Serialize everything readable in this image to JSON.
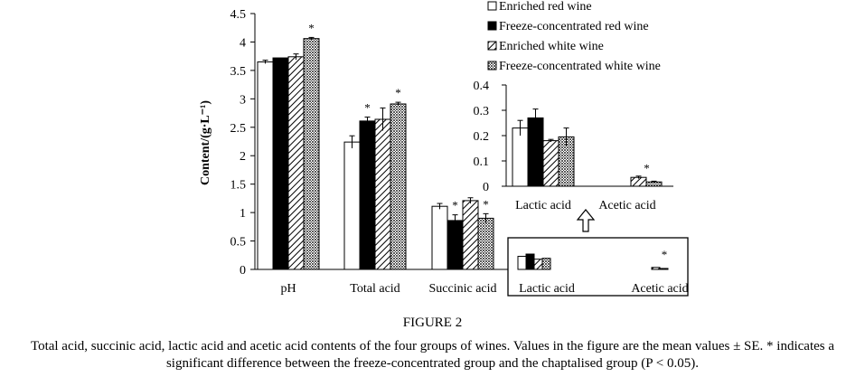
{
  "chart_data": [
    {
      "type": "bar",
      "categories": [
        "pH",
        "Total acid",
        "Succinic acid",
        "Lactic acid",
        "Acetic acid"
      ],
      "ylabel": "Content/(g·L⁻¹)",
      "ylim": [
        0,
        4.5
      ],
      "yticks": [
        "0",
        "0.5",
        "1",
        "1.5",
        "2",
        "2.5",
        "3",
        "3.5",
        "4",
        "4.5"
      ],
      "grid": false,
      "legend": "top-right",
      "series": [
        {
          "name": "Enriched red wine",
          "pattern": "white",
          "values": [
            3.65,
            2.24,
            1.11,
            0.23,
            0.0
          ],
          "errors": [
            0.03,
            0.11,
            0.05,
            0.03,
            0.0
          ]
        },
        {
          "name": "Freeze-concentrated red wine",
          "pattern": "black",
          "values": [
            3.72,
            2.61,
            0.86,
            0.27,
            0.0
          ],
          "errors": [
            0.0,
            0.07,
            0.1,
            0.035,
            0.0
          ]
        },
        {
          "name": "Enriched white wine",
          "pattern": "hatch",
          "values": [
            3.74,
            2.64,
            1.21,
            0.18,
            0.035
          ],
          "errors": [
            0.05,
            0.2,
            0.05,
            0.005,
            0.005
          ]
        },
        {
          "name": "Freeze-concentrated white wine",
          "pattern": "dots",
          "values": [
            4.06,
            2.91,
            0.9,
            0.195,
            0.017
          ],
          "errors": [
            0.02,
            0.03,
            0.08,
            0.035,
            0.003
          ]
        }
      ],
      "significance": [
        {
          "category": "pH",
          "series": 3,
          "label": "*"
        },
        {
          "category": "Total acid",
          "series": 1,
          "label": "*"
        },
        {
          "category": "Total acid",
          "series": 3,
          "label": "*"
        },
        {
          "category": "Succinic acid",
          "series": 1,
          "label": "*"
        },
        {
          "category": "Succinic acid",
          "series": 3,
          "label": "*"
        },
        {
          "category": "Acetic acid",
          "series": 3,
          "label": "*"
        }
      ]
    },
    {
      "type": "bar",
      "role": "inset zoom of Lactic acid and Acetic acid",
      "categories": [
        "Lactic acid",
        "Acetic acid"
      ],
      "ylim": [
        0,
        0.4
      ],
      "yticks": [
        "0",
        "0.1",
        "0.2",
        "0.3",
        "0.4"
      ],
      "series": [
        {
          "name": "Enriched red wine",
          "values": [
            0.23,
            0.0
          ],
          "errors": [
            0.03,
            0.0
          ]
        },
        {
          "name": "Freeze-concentrated red wine",
          "values": [
            0.27,
            0.0
          ],
          "errors": [
            0.035,
            0.0
          ]
        },
        {
          "name": "Enriched white wine",
          "values": [
            0.18,
            0.035
          ],
          "errors": [
            0.005,
            0.005
          ]
        },
        {
          "name": "Freeze-concentrated white wine",
          "values": [
            0.195,
            0.017
          ],
          "errors": [
            0.035,
            0.003
          ]
        }
      ],
      "significance": [
        {
          "category": "Acetic acid",
          "series": 3,
          "label": "*"
        }
      ]
    }
  ],
  "caption": {
    "title": "FIGURE 2",
    "text": "Total acid, succinic acid, lactic acid and acetic acid contents of the four groups of wines. Values in the figure are the mean values ± SE. * indicates a significant difference between the freeze-concentrated group and the chaptalised group (P < 0.05)."
  }
}
